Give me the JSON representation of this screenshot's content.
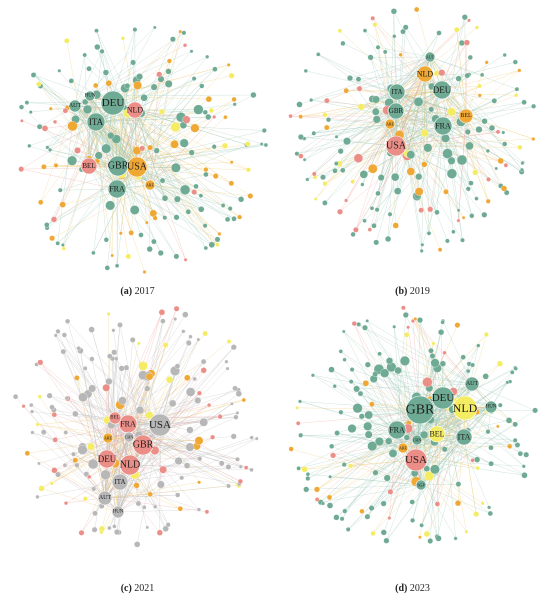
{
  "panels": [
    {
      "id": "a",
      "caption_letter": "(a)",
      "caption_year": "2017",
      "labeled_nodes": [
        {
          "label": "DEU",
          "group": "green"
        },
        {
          "label": "ITA",
          "group": "green"
        },
        {
          "label": "NLD",
          "group": "red"
        },
        {
          "label": "GBR",
          "group": "green"
        },
        {
          "label": "USA",
          "group": "orange"
        },
        {
          "label": "BEL",
          "group": "red"
        },
        {
          "label": "FRA",
          "group": "green"
        },
        {
          "label": "AUT",
          "group": "green"
        },
        {
          "label": "HUN",
          "group": "green"
        },
        {
          "label": "ARE",
          "group": "orange"
        }
      ]
    },
    {
      "id": "b",
      "caption_letter": "(b)",
      "caption_year": "2019",
      "labeled_nodes": [
        {
          "label": "NLD",
          "group": "orange"
        },
        {
          "label": "DEU",
          "group": "green"
        },
        {
          "label": "ITA",
          "group": "green"
        },
        {
          "label": "GBR",
          "group": "green"
        },
        {
          "label": "BEL",
          "group": "orange"
        },
        {
          "label": "FRA",
          "group": "green"
        },
        {
          "label": "USA",
          "group": "red"
        },
        {
          "label": "ARE",
          "group": "orange"
        },
        {
          "label": "AUT",
          "group": "green"
        }
      ]
    },
    {
      "id": "c",
      "caption_letter": "(c)",
      "caption_year": "2021",
      "labeled_nodes": [
        {
          "label": "USA",
          "group": "gray"
        },
        {
          "label": "FRA",
          "group": "red"
        },
        {
          "label": "GBR",
          "group": "red"
        },
        {
          "label": "BEL",
          "group": "red"
        },
        {
          "label": "ARE",
          "group": "orange"
        },
        {
          "label": "DEU",
          "group": "red"
        },
        {
          "label": "NLD",
          "group": "red"
        },
        {
          "label": "ITA",
          "group": "gray"
        },
        {
          "label": "AUT",
          "group": "gray"
        },
        {
          "label": "HUN",
          "group": "gray"
        },
        {
          "label": "CHN",
          "group": "gray"
        }
      ]
    },
    {
      "id": "d",
      "caption_letter": "(d)",
      "caption_year": "2023",
      "labeled_nodes": [
        {
          "label": "GBR",
          "group": "green"
        },
        {
          "label": "DEU",
          "group": "green"
        },
        {
          "label": "NLD",
          "group": "yellow"
        },
        {
          "label": "FRA",
          "group": "green"
        },
        {
          "label": "BEL",
          "group": "yellow"
        },
        {
          "label": "ITA",
          "group": "green"
        },
        {
          "label": "USA",
          "group": "red"
        },
        {
          "label": "AUT",
          "group": "green"
        },
        {
          "label": "HUN",
          "group": "green"
        },
        {
          "label": "ARE",
          "group": "orange"
        },
        {
          "label": "CHN",
          "group": "green"
        },
        {
          "label": "SGP",
          "group": "green"
        }
      ]
    }
  ],
  "colors": {
    "green": "#6faa94",
    "red": "#ec8e88",
    "orange": "#efa833",
    "yellow": "#f4ec62",
    "gray": "#b7b7b7",
    "peach": "#f2b27a",
    "edge_green": "#9ec8b8",
    "edge_orange": "#f1c970",
    "edge_red": "#eea39e",
    "edge_gray": "#bdbdbd"
  }
}
